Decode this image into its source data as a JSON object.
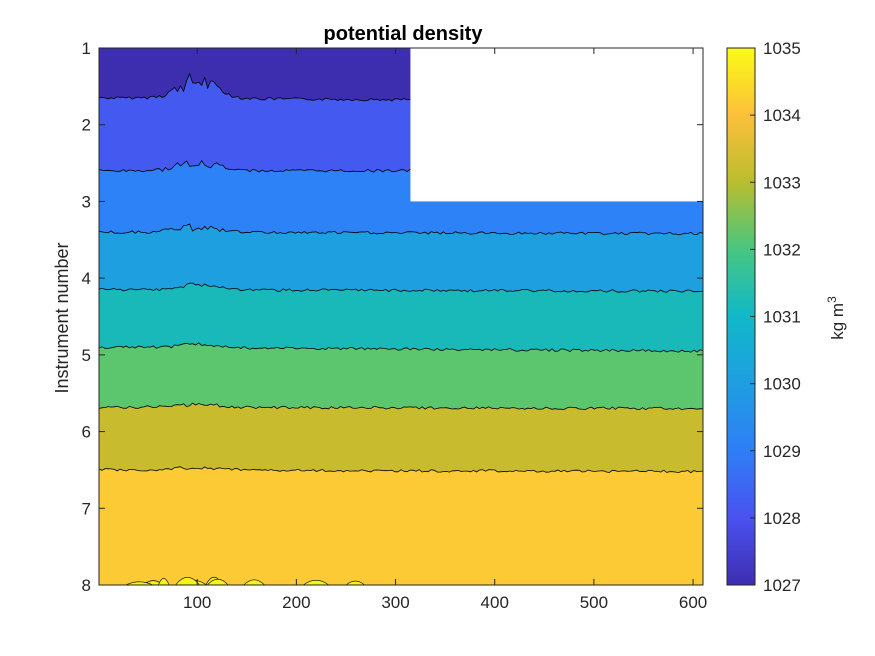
{
  "chart_data": {
    "type": "heatmap",
    "subtype": "filled-contour",
    "title": "potential density",
    "xlabel": "",
    "ylabel": "Instrument number",
    "xlim": [
      1,
      610
    ],
    "ylim": [
      1,
      8
    ],
    "y_reversed": true,
    "x_ticks": [
      100,
      200,
      300,
      400,
      500,
      600
    ],
    "y_ticks": [
      1,
      2,
      3,
      4,
      5,
      6,
      7,
      8
    ],
    "missing_region": {
      "x": [
        315,
        610
      ],
      "y": [
        1,
        3
      ],
      "note_color": "#ffffff"
    },
    "colorbar": {
      "label": "kg m",
      "label_superscript": "3",
      "range": [
        1027,
        1035
      ],
      "ticks": [
        1027,
        1028,
        1029,
        1030,
        1031,
        1032,
        1033,
        1034,
        1035
      ],
      "colormap": "parula"
    },
    "contour_levels": [
      1028,
      1029,
      1030,
      1031,
      1032,
      1033,
      1034
    ],
    "contour_depths": [
      {
        "level": 1028,
        "instrument_left": 1.65,
        "instrument_right": 1.7
      },
      {
        "level": 1029,
        "instrument_left": 2.6,
        "instrument_right": 2.6
      },
      {
        "level": 1030,
        "instrument_left": 3.4,
        "instrument_right": 3.42
      },
      {
        "level": 1031,
        "instrument_left": 4.15,
        "instrument_right": 4.17
      },
      {
        "level": 1032,
        "instrument_left": 4.9,
        "instrument_right": 4.95
      },
      {
        "level": 1033,
        "instrument_left": 5.68,
        "instrument_right": 5.7
      },
      {
        "level": 1034,
        "instrument_left": 6.5,
        "instrument_right": 6.52
      }
    ],
    "band_colors": [
      "#3d2eb0",
      "#4359f0",
      "#2e82f7",
      "#1ea0e0",
      "#18b9b8",
      "#5cc66e",
      "#c9bb2e",
      "#fcca35",
      "#f7f218"
    ],
    "grid": false
  }
}
